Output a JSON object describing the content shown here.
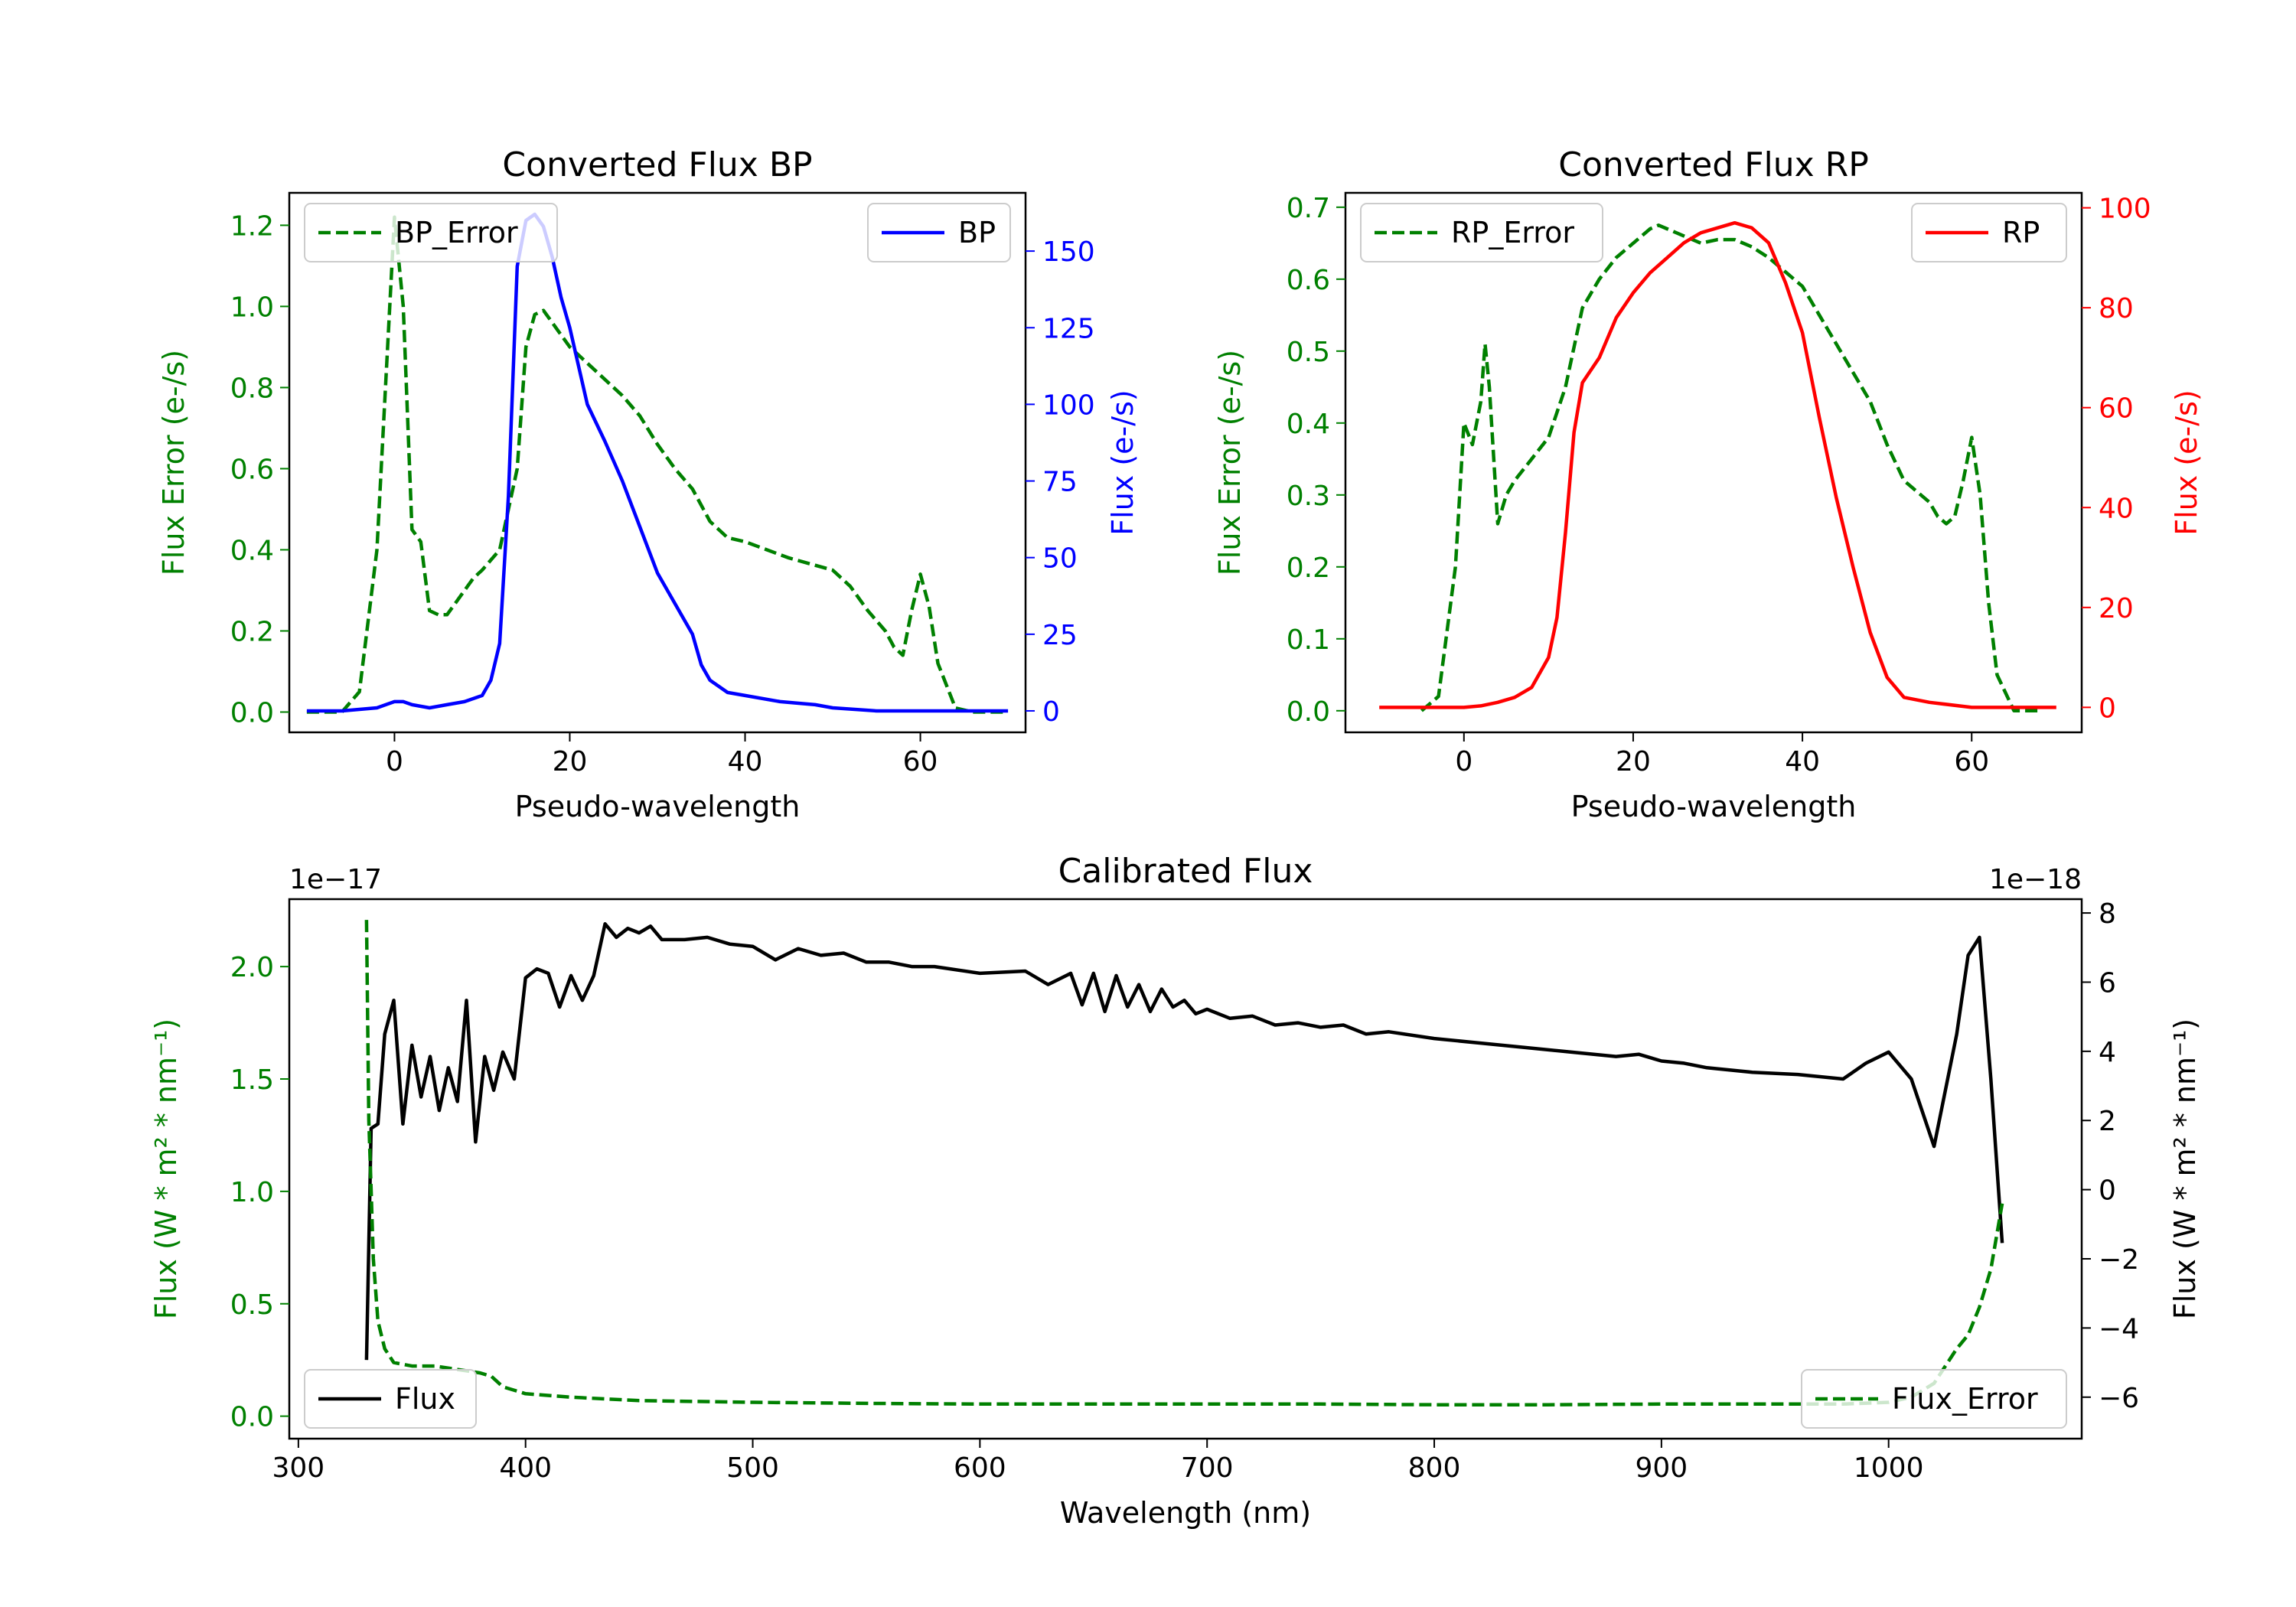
{
  "chart_data": [
    {
      "type": "line",
      "title": "Converted Flux BP",
      "xlabel": "Pseudo-wavelength",
      "ylabel_left": "Flux Error (e-/s)",
      "ylabel_right": "Flux (e-/s)",
      "xlim": [
        -12,
        72
      ],
      "ylim_left": [
        -0.05,
        1.28
      ],
      "ylim_right": [
        -7,
        169
      ],
      "x_ticks": [
        0,
        20,
        40,
        60
      ],
      "y_ticks_left": [
        "0.0",
        "0.2",
        "0.4",
        "0.6",
        "0.8",
        "1.0",
        "1.2"
      ],
      "y_ticks_right": [
        "0",
        "25",
        "50",
        "75",
        "100",
        "125",
        "150"
      ],
      "legend_left": "BP_Error",
      "legend_right": "BP",
      "series": [
        {
          "name": "BP_Error",
          "axis": "left",
          "color": "#008000",
          "dash": true,
          "x": [
            -10,
            -6,
            -4,
            -2,
            0,
            1,
            2,
            3,
            4,
            5,
            6,
            7,
            8,
            9,
            10,
            12,
            14,
            15,
            16,
            17,
            18,
            19,
            20,
            22,
            24,
            26,
            28,
            30,
            32,
            34,
            36,
            38,
            40,
            45,
            50,
            52,
            54,
            56,
            57,
            58,
            59,
            60,
            61,
            62,
            64,
            66,
            68,
            70
          ],
          "y": [
            0.0,
            0.0,
            0.05,
            0.4,
            1.22,
            1.0,
            0.45,
            0.42,
            0.25,
            0.24,
            0.24,
            0.27,
            0.3,
            0.33,
            0.35,
            0.4,
            0.6,
            0.9,
            0.98,
            0.99,
            0.96,
            0.93,
            0.9,
            0.86,
            0.82,
            0.78,
            0.73,
            0.66,
            0.6,
            0.55,
            0.47,
            0.43,
            0.42,
            0.38,
            0.35,
            0.31,
            0.25,
            0.2,
            0.16,
            0.14,
            0.25,
            0.34,
            0.26,
            0.12,
            0.01,
            0.0,
            0.0,
            0.0
          ]
        },
        {
          "name": "BP",
          "axis": "right",
          "color": "#0000ff",
          "dash": false,
          "x": [
            -10,
            -6,
            -2,
            0,
            1,
            2,
            4,
            6,
            8,
            10,
            11,
            12,
            13,
            14,
            15,
            16,
            17,
            18,
            19,
            20,
            22,
            24,
            26,
            28,
            30,
            32,
            34,
            35,
            36,
            38,
            40,
            44,
            48,
            50,
            55,
            60,
            65,
            70
          ],
          "y": [
            0,
            0,
            1,
            3,
            3,
            2,
            1,
            2,
            3,
            5,
            10,
            22,
            70,
            145,
            160,
            162,
            158,
            148,
            135,
            125,
            100,
            88,
            75,
            60,
            45,
            35,
            25,
            15,
            10,
            6,
            5,
            3,
            2,
            1,
            0,
            0,
            0,
            0
          ]
        }
      ]
    },
    {
      "type": "line",
      "title": "Converted Flux RP",
      "xlabel": "Pseudo-wavelength",
      "ylabel_left": "Flux Error (e-/s)",
      "ylabel_right": "Flux (e-/s)",
      "xlim": [
        -14,
        73
      ],
      "ylim_left": [
        -0.03,
        0.72
      ],
      "ylim_right": [
        -5,
        103
      ],
      "x_ticks": [
        0,
        20,
        40,
        60
      ],
      "y_ticks_left": [
        "0.0",
        "0.1",
        "0.2",
        "0.3",
        "0.4",
        "0.5",
        "0.6",
        "0.7"
      ],
      "y_ticks_right": [
        "0",
        "20",
        "40",
        "60",
        "80",
        "100"
      ],
      "legend_left": "RP_Error",
      "legend_right": "RP",
      "series": [
        {
          "name": "RP_Error",
          "axis": "left",
          "color": "#008000",
          "dash": true,
          "x": [
            -5,
            -3,
            -1,
            0,
            1,
            2,
            2.5,
            3,
            4,
            5,
            6,
            8,
            10,
            12,
            14,
            16,
            18,
            20,
            22,
            23,
            24,
            26,
            28,
            30,
            32,
            34,
            36,
            38,
            40,
            42,
            44,
            46,
            48,
            50,
            52,
            54,
            55,
            56,
            57,
            58,
            59,
            60,
            61,
            62,
            63,
            65,
            68
          ],
          "y": [
            0.0,
            0.02,
            0.2,
            0.4,
            0.37,
            0.43,
            0.51,
            0.45,
            0.26,
            0.3,
            0.32,
            0.35,
            0.38,
            0.45,
            0.56,
            0.6,
            0.63,
            0.65,
            0.67,
            0.675,
            0.67,
            0.66,
            0.65,
            0.655,
            0.655,
            0.645,
            0.63,
            0.61,
            0.59,
            0.55,
            0.51,
            0.47,
            0.43,
            0.37,
            0.32,
            0.3,
            0.29,
            0.27,
            0.26,
            0.27,
            0.32,
            0.38,
            0.3,
            0.15,
            0.05,
            0.0,
            0.0
          ]
        },
        {
          "name": "RP",
          "axis": "right",
          "color": "#ff0000",
          "dash": false,
          "x": [
            -10,
            -5,
            0,
            2,
            4,
            6,
            8,
            10,
            11,
            12,
            13,
            14,
            16,
            18,
            20,
            22,
            24,
            26,
            28,
            30,
            32,
            34,
            36,
            38,
            40,
            42,
            44,
            46,
            48,
            50,
            52,
            55,
            60,
            65,
            70
          ],
          "y": [
            0,
            0,
            0,
            0.3,
            1,
            2,
            4,
            10,
            18,
            35,
            55,
            65,
            70,
            78,
            83,
            87,
            90,
            93,
            95,
            96,
            97,
            96,
            93,
            85,
            75,
            58,
            42,
            28,
            15,
            6,
            2,
            1,
            0,
            0,
            0
          ]
        }
      ]
    },
    {
      "type": "line",
      "title": "Calibrated Flux",
      "xlabel": "Wavelength (nm)",
      "ylabel_left": "Flux (W * m² * nm⁻¹)",
      "ylabel_right": "Flux (W * m² * nm⁻¹)",
      "offset_left": "1e−17",
      "offset_right": "1e−18",
      "xlim": [
        296,
        1085
      ],
      "ylim_left": [
        -0.1,
        2.3
      ],
      "ylim_right": [
        -7.2,
        8.4
      ],
      "x_ticks": [
        300,
        400,
        500,
        600,
        700,
        800,
        900,
        1000
      ],
      "y_ticks_left": [
        "0.0",
        "0.5",
        "1.0",
        "1.5",
        "2.0"
      ],
      "y_ticks_right": [
        "−6",
        "−4",
        "−2",
        "0",
        "2",
        "4",
        "6",
        "8"
      ],
      "legend_left": "Flux",
      "legend_right": "Flux_Error",
      "series": [
        {
          "name": "Flux",
          "axis": "left",
          "color": "#000000",
          "dash": false,
          "x": [
            330,
            332,
            335,
            338,
            342,
            346,
            350,
            354,
            358,
            362,
            366,
            370,
            374,
            378,
            382,
            386,
            390,
            395,
            400,
            405,
            410,
            415,
            420,
            425,
            430,
            435,
            440,
            445,
            450,
            455,
            460,
            470,
            480,
            490,
            500,
            510,
            520,
            530,
            540,
            550,
            560,
            570,
            580,
            600,
            620,
            630,
            640,
            645,
            650,
            655,
            660,
            665,
            670,
            675,
            680,
            685,
            690,
            695,
            700,
            710,
            720,
            730,
            740,
            750,
            760,
            770,
            780,
            800,
            820,
            840,
            860,
            880,
            890,
            900,
            910,
            920,
            940,
            960,
            980,
            990,
            1000,
            1010,
            1020,
            1030,
            1035,
            1040,
            1045,
            1050
          ],
          "y": [
            0.25,
            1.28,
            1.3,
            1.7,
            1.85,
            1.3,
            1.65,
            1.42,
            1.6,
            1.36,
            1.55,
            1.4,
            1.85,
            1.22,
            1.6,
            1.45,
            1.62,
            1.5,
            1.95,
            1.99,
            1.97,
            1.82,
            1.96,
            1.85,
            1.96,
            2.19,
            2.13,
            2.17,
            2.15,
            2.18,
            2.12,
            2.12,
            2.13,
            2.1,
            2.09,
            2.03,
            2.08,
            2.05,
            2.06,
            2.02,
            2.02,
            2.0,
            2.0,
            1.97,
            1.98,
            1.92,
            1.97,
            1.83,
            1.97,
            1.8,
            1.96,
            1.82,
            1.92,
            1.8,
            1.9,
            1.82,
            1.85,
            1.79,
            1.81,
            1.77,
            1.78,
            1.74,
            1.75,
            1.73,
            1.74,
            1.7,
            1.71,
            1.68,
            1.66,
            1.64,
            1.62,
            1.6,
            1.61,
            1.58,
            1.57,
            1.55,
            1.53,
            1.52,
            1.5,
            1.57,
            1.62,
            1.5,
            1.2,
            1.7,
            2.05,
            2.13,
            1.5,
            0.77
          ]
        },
        {
          "name": "Flux_Error",
          "axis": "right",
          "color": "#008000",
          "dash": true,
          "x": [
            330,
            331,
            332,
            333,
            335,
            338,
            342,
            350,
            360,
            370,
            380,
            385,
            390,
            400,
            420,
            450,
            500,
            550,
            600,
            650,
            700,
            750,
            800,
            850,
            900,
            950,
            980,
            1000,
            1010,
            1020,
            1030,
            1035,
            1040,
            1045,
            1050
          ],
          "y": [
            7.8,
            2.0,
            0.0,
            -2.0,
            -3.8,
            -4.6,
            -5.0,
            -5.1,
            -5.1,
            -5.2,
            -5.3,
            -5.4,
            -5.7,
            -5.9,
            -6.0,
            -6.1,
            -6.15,
            -6.18,
            -6.2,
            -6.2,
            -6.2,
            -6.2,
            -6.22,
            -6.22,
            -6.2,
            -6.2,
            -6.2,
            -6.15,
            -6.0,
            -5.6,
            -4.6,
            -4.2,
            -3.4,
            -2.3,
            -0.4
          ]
        }
      ]
    }
  ]
}
